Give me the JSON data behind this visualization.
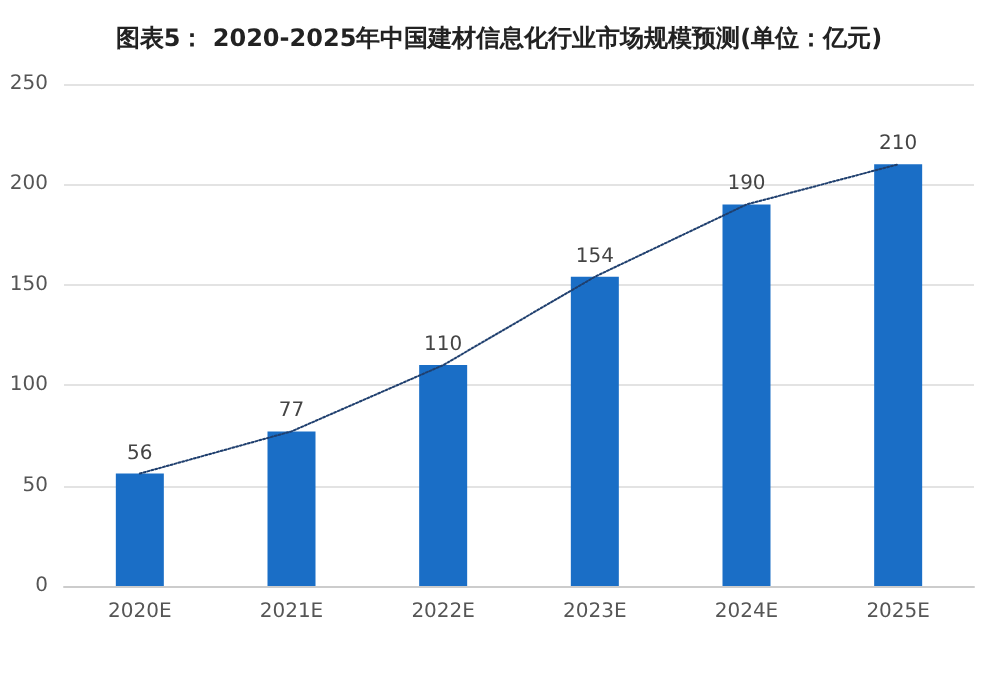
{
  "chart_data": {
    "type": "bar",
    "title": "图表5： 2020-2025年中国建材信息化行业市场规模预测(单位：亿元)",
    "categories": [
      "2020E",
      "2021E",
      "2022E",
      "2023E",
      "2024E",
      "2025E"
    ],
    "series": [
      {
        "color": "#1a6ec6",
        "values": [
          56,
          77,
          110,
          154,
          190,
          210
        ],
        "value_labels": [
          "56",
          "77",
          "110",
          "154",
          "190",
          "210"
        ]
      },
      {
        "type": "line",
        "color": "#1f3f6e",
        "line_style": "dotted",
        "marker": "none",
        "values": [
          56,
          77,
          110,
          154,
          190,
          210
        ]
      }
    ],
    "ylim": [
      0,
      250
    ],
    "yticks": [
      0,
      50,
      100,
      150,
      200,
      250
    ],
    "grid": "y"
  }
}
